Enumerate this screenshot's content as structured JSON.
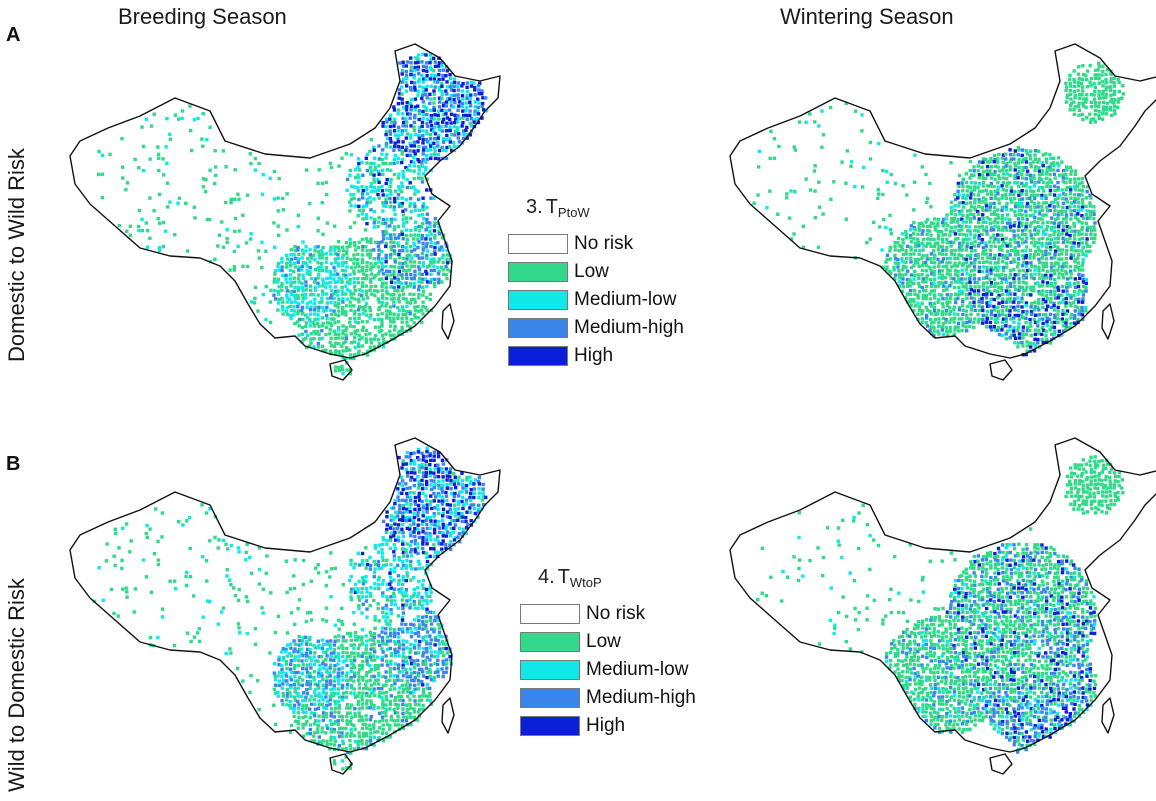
{
  "columns": [
    "Breeding Season",
    "Wintering Season"
  ],
  "rows": [
    {
      "letter": "A",
      "label": "Domestic to Wild Risk"
    },
    {
      "letter": "B",
      "label": "Wild to Domestic Risk"
    }
  ],
  "legends": [
    {
      "number": "3.",
      "symbol": "T",
      "subscript": "PtoW"
    },
    {
      "number": "4.",
      "symbol": "T",
      "subscript": "WtoP"
    }
  ],
  "legend_items": [
    "No risk",
    "Low",
    "Medium-low",
    "Medium-high",
    "High"
  ],
  "colors": {
    "no_risk": "#ffffff",
    "low": "#33d98a",
    "medium_low": "#12e8e8",
    "medium_high": "#3b86ea",
    "high": "#0a1fd8",
    "border": "#111111"
  }
}
